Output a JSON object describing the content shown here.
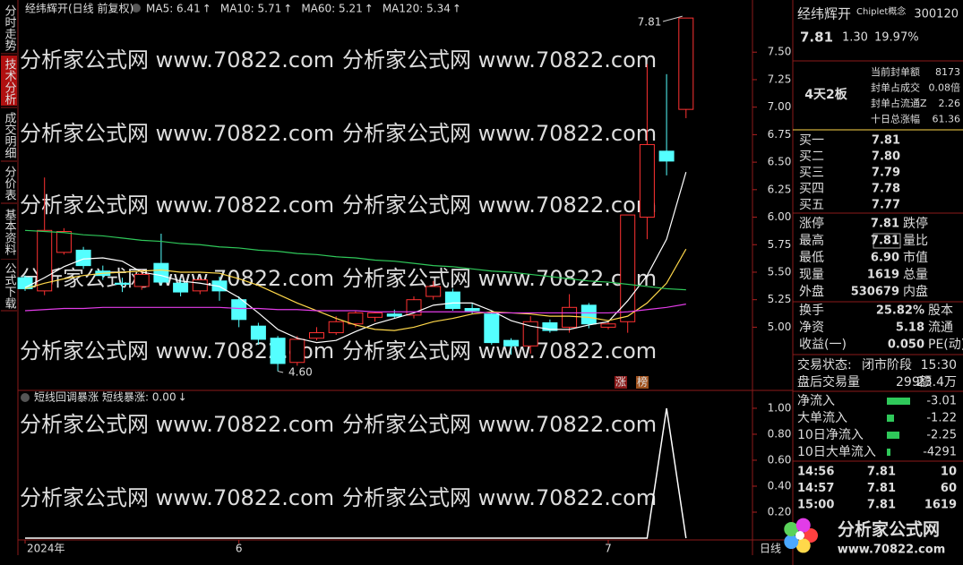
{
  "sidebar_tabs": [
    "分时走势",
    "技术分析",
    "成交明细",
    "分价表",
    "基本资料",
    "公式下载"
  ],
  "watermark": "分析家公式网 www.70822.com",
  "logo": {
    "title": "分析家公式网",
    "url": "www.70822.com"
  },
  "period_label": "日线",
  "chart_data": [
    {
      "type": "candlestick",
      "title": "经纬辉开(日线 前复权)",
      "categories": [
        "2024年",
        null,
        null,
        null,
        null,
        null,
        null,
        null,
        null,
        null,
        null,
        "6",
        null,
        null,
        null,
        null,
        null,
        null,
        null,
        null,
        null,
        null,
        null,
        null,
        null,
        null,
        null,
        null,
        null,
        null,
        "7",
        null,
        null,
        null,
        null
      ],
      "open": [
        5.45,
        5.33,
        5.68,
        5.7,
        5.51,
        5.4,
        5.37,
        5.58,
        5.4,
        5.33,
        5.42,
        5.25,
        5.01,
        4.9,
        4.68,
        4.9,
        4.95,
        5.03,
        5.09,
        5.12,
        5.11,
        5.28,
        5.32,
        5.17,
        5.12,
        4.88,
        4.83,
        5.04,
        5.0,
        5.2,
        5.0,
        5.05,
        6.0,
        6.6,
        6.98
      ],
      "high": [
        5.47,
        6.36,
        5.9,
        5.73,
        5.56,
        5.45,
        5.52,
        5.85,
        5.44,
        5.45,
        5.46,
        5.28,
        5.04,
        4.92,
        4.92,
        5.0,
        5.1,
        5.15,
        5.14,
        5.16,
        5.28,
        5.42,
        5.35,
        5.22,
        5.15,
        4.9,
        5.1,
        5.07,
        5.3,
        5.22,
        5.05,
        6.02,
        7.39,
        7.3,
        7.81
      ],
      "low": [
        5.33,
        5.29,
        5.66,
        5.53,
        5.43,
        5.32,
        5.34,
        5.38,
        5.28,
        5.3,
        5.24,
        5.0,
        4.84,
        4.6,
        4.65,
        4.88,
        4.93,
        5.0,
        5.05,
        5.08,
        5.08,
        5.25,
        5.15,
        5.12,
        4.84,
        4.75,
        4.76,
        4.95,
        4.95,
        4.99,
        4.98,
        4.95,
        5.8,
        6.38,
        6.9
      ],
      "close": [
        5.35,
        5.88,
        5.87,
        5.56,
        5.47,
        5.39,
        5.48,
        5.41,
        5.32,
        5.43,
        5.33,
        5.07,
        4.89,
        4.67,
        4.89,
        4.95,
        5.05,
        5.13,
        5.13,
        5.1,
        5.25,
        5.37,
        5.17,
        5.15,
        4.86,
        4.83,
        5.05,
        4.97,
        5.18,
        5.03,
        5.03,
        6.02,
        6.66,
        6.51,
        7.81
      ],
      "up_color": "#ff3232",
      "down_color": "#54ffff",
      "ylim": [
        4.45,
        7.86
      ],
      "yticks": [
        {
          "value": 5,
          "label": "5.00"
        },
        {
          "value": 5.25,
          "label": "5.25"
        },
        {
          "value": 5.5,
          "label": "5.50"
        },
        {
          "value": 5.75,
          "label": "5.75"
        },
        {
          "value": 6,
          "label": "6.00"
        },
        {
          "value": 6.25,
          "label": "6.25"
        },
        {
          "value": 6.5,
          "label": "6.50"
        },
        {
          "value": 6.75,
          "label": "6.75"
        },
        {
          "value": 7,
          "label": "7.00"
        },
        {
          "value": 7.25,
          "label": "7.25"
        },
        {
          "value": 7.5,
          "label": "7.50"
        }
      ],
      "series": [
        {
          "name": "MA5: 6.41",
          "trend": "↑",
          "color": "#ffffff",
          "values": [
            5.36,
            5.45,
            5.55,
            5.62,
            5.63,
            5.6,
            5.5,
            5.47,
            5.42,
            5.4,
            5.37,
            5.27,
            5.13,
            4.98,
            4.9,
            4.86,
            4.88,
            4.96,
            5.03,
            5.08,
            5.13,
            5.2,
            5.22,
            5.22,
            5.15,
            5.06,
            5.01,
            4.98,
            4.98,
            5.02,
            5.05,
            5.24,
            5.47,
            5.8,
            6.41
          ]
        },
        {
          "name": "MA10: 5.71",
          "trend": "↑",
          "color": "#ffd84a",
          "values": [
            5.35,
            5.4,
            5.44,
            5.47,
            5.49,
            5.5,
            5.51,
            5.52,
            5.5,
            5.5,
            5.49,
            5.44,
            5.38,
            5.3,
            5.22,
            5.15,
            5.08,
            5.02,
            4.98,
            4.97,
            5.0,
            5.05,
            5.08,
            5.12,
            5.14,
            5.13,
            5.12,
            5.1,
            5.1,
            5.09,
            5.06,
            5.1,
            5.22,
            5.4,
            5.71
          ]
        },
        {
          "name": "MA60: 5.21",
          "trend": "↑",
          "color": "#e23ce8",
          "values": [
            5.15,
            5.16,
            5.17,
            5.17,
            5.18,
            5.18,
            5.18,
            5.18,
            5.18,
            5.18,
            5.18,
            5.17,
            5.17,
            5.16,
            5.16,
            5.15,
            5.15,
            5.15,
            5.14,
            5.14,
            5.14,
            5.14,
            5.14,
            5.14,
            5.13,
            5.13,
            5.13,
            5.13,
            5.13,
            5.13,
            5.13,
            5.14,
            5.16,
            5.18,
            5.21
          ]
        },
        {
          "name": "MA120: 5.34",
          "trend": "↑",
          "color": "#2fc85a",
          "values": [
            5.88,
            5.87,
            5.86,
            5.84,
            5.83,
            5.81,
            5.79,
            5.78,
            5.76,
            5.75,
            5.73,
            5.72,
            5.7,
            5.69,
            5.67,
            5.66,
            5.64,
            5.63,
            5.61,
            5.6,
            5.58,
            5.56,
            5.55,
            5.53,
            5.51,
            5.5,
            5.48,
            5.46,
            5.44,
            5.42,
            5.41,
            5.39,
            5.37,
            5.35,
            5.34
          ]
        }
      ],
      "annotations": [
        "7.81",
        "4.60"
      ],
      "badges": [
        "涨",
        "榜"
      ]
    },
    {
      "type": "line",
      "title": "短线回调暴涨",
      "series": [
        {
          "name": "短线暴涨: 0.00",
          "trend": "↓",
          "color": "#ffffff",
          "values": [
            0,
            0,
            0,
            0,
            0,
            0,
            0,
            0,
            0,
            0,
            0,
            0,
            0,
            0,
            0,
            0,
            0,
            0,
            0,
            0,
            0,
            0,
            0,
            0,
            0,
            0,
            0,
            0,
            0,
            0,
            0,
            0,
            0,
            1,
            0
          ]
        }
      ],
      "ylim": [
        0,
        1.11
      ],
      "yticks": [
        {
          "value": 0.2,
          "label": "0.20"
        },
        {
          "value": 0.4,
          "label": "0.40"
        },
        {
          "value": 0.6,
          "label": "0.60"
        },
        {
          "value": 0.8,
          "label": "0.80"
        },
        {
          "value": 1,
          "label": "1.00"
        }
      ]
    }
  ],
  "quote_panel": {
    "name": "经纬辉开",
    "concept": "Chiplet概念",
    "code": "300120",
    "price": "7.81",
    "change": "1.30",
    "change_pct": "19.97%",
    "board": "4天2板",
    "seal": [
      [
        "当前封单额",
        "8173"
      ],
      [
        "封单占成交",
        "0.08倍"
      ],
      [
        "封单占流通Z",
        "2.26"
      ],
      [
        "十日总涨幅",
        "61.36"
      ]
    ],
    "bids": [
      [
        "买一",
        "7.81"
      ],
      [
        "买二",
        "7.80"
      ],
      [
        "买三",
        "7.79"
      ],
      [
        "买四",
        "7.78"
      ],
      [
        "买五",
        "7.77"
      ]
    ],
    "stats": [
      [
        "涨停",
        "7.81",
        "跌停"
      ],
      [
        "最高",
        "7.81",
        "量比"
      ],
      [
        "最低",
        "6.90",
        "市值"
      ],
      [
        "现量",
        "1619",
        "总量"
      ],
      [
        "外盘",
        "530679",
        "内盘"
      ]
    ],
    "stats2": [
      [
        "换手",
        "25.82%",
        "股本"
      ],
      [
        "净资",
        "5.18",
        "流通"
      ],
      [
        "收益(一)",
        "0.050",
        "PE(动)"
      ]
    ],
    "status": [
      "交易状态:",
      "闭市阶段",
      "15:30"
    ],
    "after": [
      "盘后交易量",
      "299",
      "额",
      "23.4万"
    ],
    "flows": [
      [
        "净流入",
        "-3.01"
      ],
      [
        "大单流入",
        "-1.22"
      ],
      [
        "10日净流入",
        "-2.25"
      ],
      [
        "10日大单流入",
        "-4291"
      ]
    ],
    "ticks": [
      [
        "14:56",
        "7.81",
        "10"
      ],
      [
        "14:57",
        "7.81",
        "60"
      ],
      [
        "15:00",
        "7.81",
        "1619"
      ]
    ]
  }
}
